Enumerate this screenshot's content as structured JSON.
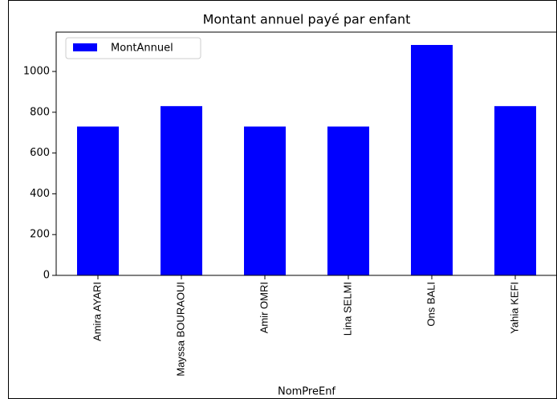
{
  "chart_data": {
    "type": "bar",
    "title": "Montant annuel payé par enfant",
    "x_label": "NomPreEnf",
    "categories": [
      "Amira AYARI",
      "Mayssa BOURAOUI",
      "Amir OMRI",
      "Lina SELMI",
      "Ons BALI",
      "Yahia KEFI"
    ],
    "series": [
      {
        "name": "MontAnnuel",
        "color": "#0000ff",
        "values": [
          730,
          830,
          730,
          730,
          1130,
          830
        ]
      }
    ],
    "ylim": [
      0,
      1193
    ],
    "yticks": [
      0,
      200,
      400,
      600,
      800,
      1000
    ],
    "legend": "upper left"
  }
}
